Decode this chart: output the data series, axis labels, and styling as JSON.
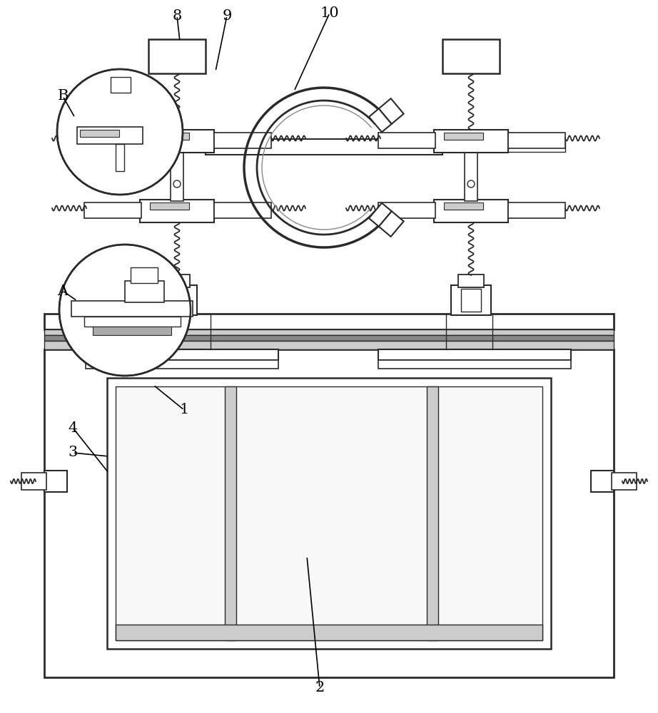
{
  "bg_color": "#ffffff",
  "lc": "#2a2a2a",
  "gray": "#999999",
  "lgray": "#cccccc",
  "fig_w": 9.22,
  "fig_h": 10.0,
  "dpi": 100
}
